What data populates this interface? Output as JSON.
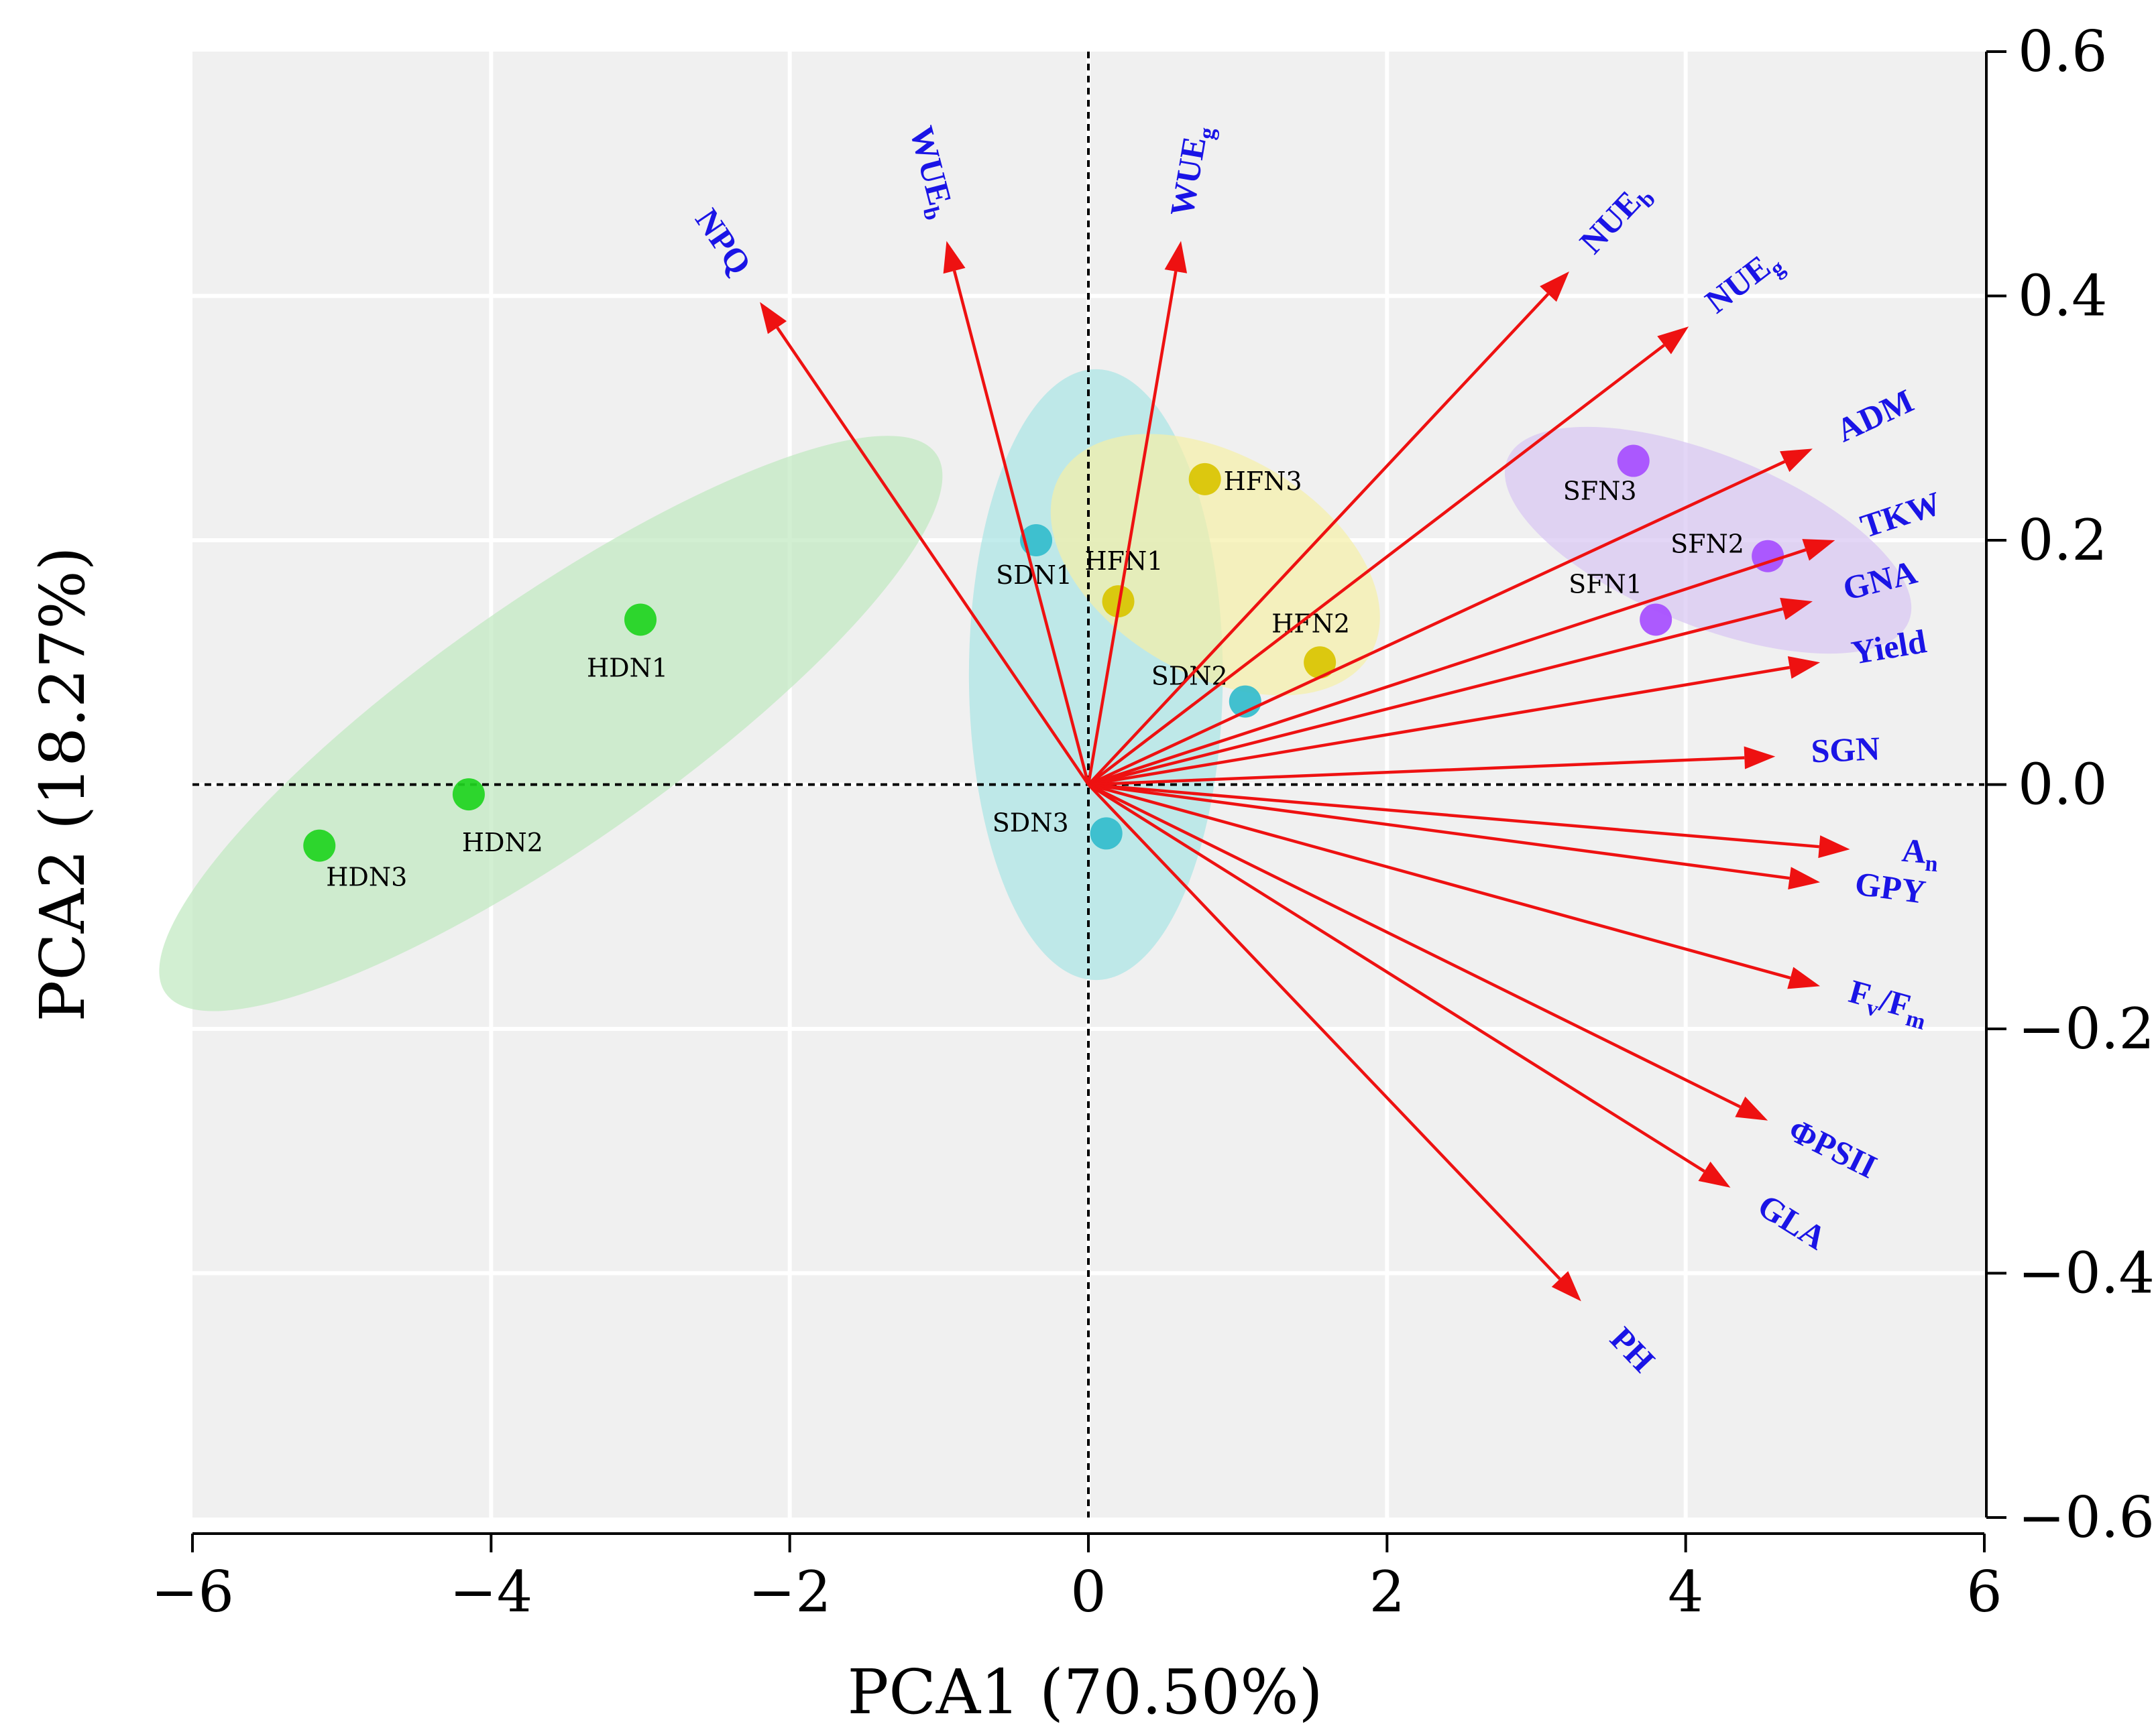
{
  "chart_data": {
    "type": "scatter",
    "subtype": "pca-biplot",
    "xlabel": "PCA1 (70.50%)",
    "ylabel": "PCA2 (18.27%)",
    "xlim": [
      -6,
      6
    ],
    "ylim": [
      -0.6,
      0.6
    ],
    "x_ticks": [
      -6,
      -4,
      -2,
      0,
      2,
      4,
      6
    ],
    "x_tick_labels": [
      "−6",
      "−4",
      "−2",
      "0",
      "2",
      "4",
      "6"
    ],
    "y_ticks": [
      -0.6,
      -0.4,
      -0.2,
      0.0,
      0.2,
      0.4,
      0.6
    ],
    "y_tick_labels": [
      "−0.6",
      "−0.4",
      "−0.2",
      "0.0",
      "0.2",
      "0.4",
      "0.6"
    ],
    "y_axis_side": "right",
    "grid": true,
    "groups": [
      {
        "name": "HDN",
        "color": "#1fd41f",
        "fill": "#bfe8bf",
        "ellipse": {
          "cx": -3.6,
          "cy": 0.05,
          "rx": 3.15,
          "ry": 0.1,
          "angle_deg": 35
        },
        "points": [
          {
            "label": "HDN1",
            "x": -3.0,
            "y": 0.135
          },
          {
            "label": "HDN2",
            "x": -4.15,
            "y": -0.008
          },
          {
            "label": "HDN3",
            "x": -5.15,
            "y": -0.05
          }
        ]
      },
      {
        "name": "SDN",
        "color": "#33bccc",
        "fill": "#a8e4e4",
        "ellipse": {
          "cx": 0.05,
          "cy": 0.09,
          "rx": 0.85,
          "ry": 0.25,
          "angle_deg": 0
        },
        "points": [
          {
            "label": "SDN1",
            "x": -0.35,
            "y": 0.2
          },
          {
            "label": "SDN2",
            "x": 1.05,
            "y": 0.068
          },
          {
            "label": "SDN3",
            "x": 0.12,
            "y": -0.04
          }
        ]
      },
      {
        "name": "HFN",
        "color": "#d9c400",
        "fill": "#f5f0a6",
        "ellipse": {
          "cx": 0.85,
          "cy": 0.18,
          "rx": 1.2,
          "ry": 0.09,
          "angle_deg": -30
        },
        "points": [
          {
            "label": "HFN1",
            "x": 0.2,
            "y": 0.15
          },
          {
            "label": "HFN2",
            "x": 1.55,
            "y": 0.1
          },
          {
            "label": "HFN3",
            "x": 0.78,
            "y": 0.25
          }
        ]
      },
      {
        "name": "SFN",
        "color": "#a64dff",
        "fill": "#d7c4f2",
        "ellipse": {
          "cx": 4.15,
          "cy": 0.2,
          "rx": 1.45,
          "ry": 0.07,
          "angle_deg": -22
        },
        "points": [
          {
            "label": "SFN1",
            "x": 3.8,
            "y": 0.135
          },
          {
            "label": "SFN2",
            "x": 4.55,
            "y": 0.187
          },
          {
            "label": "SFN3",
            "x": 3.65,
            "y": 0.265
          }
        ]
      }
    ],
    "loadings_color": "#ee1111",
    "loadings": [
      {
        "name": "NPQ",
        "x": -2.2,
        "y": 0.395
      },
      {
        "name": "WUE",
        "sub": "b",
        "x": -0.95,
        "y": 0.445
      },
      {
        "name": "WUE",
        "sub": "g",
        "x": 0.62,
        "y": 0.445
      },
      {
        "name": "NUE",
        "sub": "b",
        "x": 3.22,
        "y": 0.42
      },
      {
        "name": "NUE",
        "sub": "g",
        "x": 4.02,
        "y": 0.375
      },
      {
        "name": "ADM",
        "x": 4.85,
        "y": 0.275
      },
      {
        "name": "TKW",
        "x": 5.0,
        "y": 0.2
      },
      {
        "name": "GNA",
        "x": 4.85,
        "y": 0.15
      },
      {
        "name": "Yield",
        "x": 4.9,
        "y": 0.1
      },
      {
        "name": "SGN",
        "x": 4.6,
        "y": 0.023
      },
      {
        "name": "A",
        "sub": "n",
        "x": 5.1,
        "y": -0.053
      },
      {
        "name": "GPY",
        "x": 4.9,
        "y": -0.08
      },
      {
        "name": "F",
        "sub": "v",
        "mid": "/F",
        "sub2": "m",
        "x": 4.9,
        "y": -0.165
      },
      {
        "name": "ΦPSII",
        "x": 4.55,
        "y": -0.275
      },
      {
        "name": "GLA",
        "x": 4.3,
        "y": -0.33
      },
      {
        "name": "PH",
        "x": 3.3,
        "y": -0.423
      }
    ]
  }
}
